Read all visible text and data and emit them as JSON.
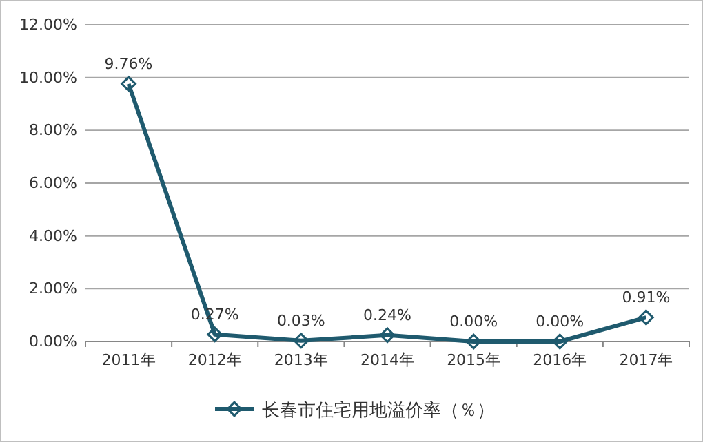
{
  "chart_data": {
    "type": "line",
    "categories": [
      "2011年",
      "2012年",
      "2013年",
      "2014年",
      "2015年",
      "2016年",
      "2017年"
    ],
    "series": [
      {
        "name": "长春市住宅用地溢价率（％）",
        "color": "#1f5a6e",
        "values": [
          9.76,
          0.27,
          0.03,
          0.24,
          0.0,
          0.0,
          0.91
        ],
        "value_labels": [
          "9.76%",
          "0.27%",
          "0.03%",
          "0.24%",
          "0.00%",
          "0.00%",
          "0.91%"
        ]
      }
    ],
    "ylim": [
      0,
      12
    ],
    "yticks": [
      {
        "value": 0,
        "label": "0.00%"
      },
      {
        "value": 2,
        "label": "2.00%"
      },
      {
        "value": 4,
        "label": "4.00%"
      },
      {
        "value": 6,
        "label": "6.00%"
      },
      {
        "value": 8,
        "label": "8.00%"
      },
      {
        "value": 10,
        "label": "10.00%"
      },
      {
        "value": 12,
        "label": "12.00%"
      }
    ],
    "grid": "y",
    "legend": "bottom",
    "marker": "diamond",
    "line_style": "solid"
  }
}
